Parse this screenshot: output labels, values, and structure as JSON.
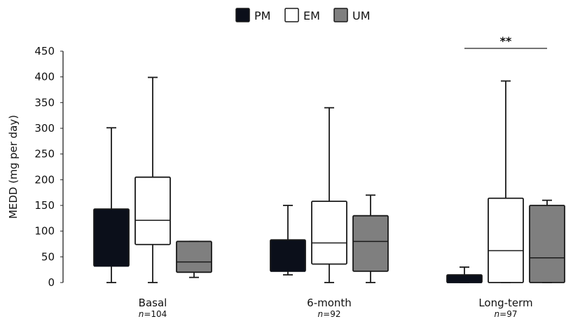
{
  "chart_data": {
    "type": "box",
    "ylabel": "MEDD (mg per day)",
    "ylim": [
      0,
      450
    ],
    "yticks": [
      0,
      50,
      100,
      150,
      200,
      250,
      300,
      350,
      400,
      450
    ],
    "legend_position": "top-center",
    "series": [
      {
        "name": "PM",
        "color": "#0b0f1a"
      },
      {
        "name": "EM",
        "color": "#ffffff"
      },
      {
        "name": "UM",
        "color": "#7f7f7f"
      }
    ],
    "categories": [
      {
        "label": "Basal",
        "n_prefix": "n",
        "n_value": "=104"
      },
      {
        "label": "6-month",
        "n_prefix": "n",
        "n_value": "=92"
      },
      {
        "label": "Long-term",
        "n_prefix": "n",
        "n_value": "=97"
      }
    ],
    "boxes": [
      [
        {
          "series": "PM",
          "min": 0,
          "q1": 32,
          "median": 32,
          "q3": 143,
          "max": 301
        },
        {
          "series": "EM",
          "min": 0,
          "q1": 74,
          "median": 121,
          "q3": 205,
          "max": 399
        },
        {
          "series": "UM",
          "min": 10,
          "q1": 20,
          "median": 40,
          "q3": 80,
          "max": 80
        }
      ],
      [
        {
          "series": "PM",
          "min": 15,
          "q1": 22,
          "median": 22,
          "q3": 83,
          "max": 150
        },
        {
          "series": "EM",
          "min": 0,
          "q1": 36,
          "median": 77,
          "q3": 158,
          "max": 340
        },
        {
          "series": "UM",
          "min": 0,
          "q1": 22,
          "median": 80,
          "q3": 130,
          "max": 170
        }
      ],
      [
        {
          "series": "PM",
          "min": 0,
          "q1": 0,
          "median": 0,
          "q3": 15,
          "max": 30
        },
        {
          "series": "EM",
          "min": 0,
          "q1": 0,
          "median": 62,
          "q3": 164,
          "max": 392
        },
        {
          "series": "UM",
          "min": 0,
          "q1": 0,
          "median": 48,
          "q3": 150,
          "max": 160
        }
      ]
    ],
    "annotations": [
      {
        "text": "**",
        "category": "Long-term",
        "y": 450
      }
    ]
  }
}
